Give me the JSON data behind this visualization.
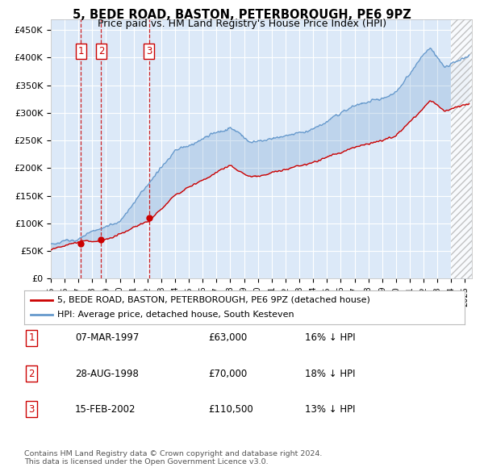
{
  "title": "5, BEDE ROAD, BASTON, PETERBOROUGH, PE6 9PZ",
  "subtitle": "Price paid vs. HM Land Registry's House Price Index (HPI)",
  "legend_label_red": "5, BEDE ROAD, BASTON, PETERBOROUGH, PE6 9PZ (detached house)",
  "legend_label_blue": "HPI: Average price, detached house, South Kesteven",
  "footer1": "Contains HM Land Registry data © Crown copyright and database right 2024.",
  "footer2": "This data is licensed under the Open Government Licence v3.0.",
  "purchases": [
    {
      "num": 1,
      "date_label": "07-MAR-1997",
      "price_label": "£63,000",
      "pct_label": "16% ↓ HPI",
      "year": 1997.19
    },
    {
      "num": 2,
      "date_label": "28-AUG-1998",
      "price_label": "£70,000",
      "pct_label": "18% ↓ HPI",
      "year": 1998.65
    },
    {
      "num": 3,
      "date_label": "15-FEB-2002",
      "price_label": "£110,500",
      "pct_label": "13% ↓ HPI",
      "year": 2002.12
    }
  ],
  "purchase_values": [
    63000,
    70000,
    110500
  ],
  "background_color": "#dce9f8",
  "grid_color": "#ffffff",
  "red_color": "#cc0000",
  "blue_color": "#6699cc",
  "xmin": 1995.0,
  "xmax": 2025.5,
  "ymin": 0,
  "ymax": 470000,
  "yticks": [
    0,
    50000,
    100000,
    150000,
    200000,
    250000,
    300000,
    350000,
    400000,
    450000
  ]
}
